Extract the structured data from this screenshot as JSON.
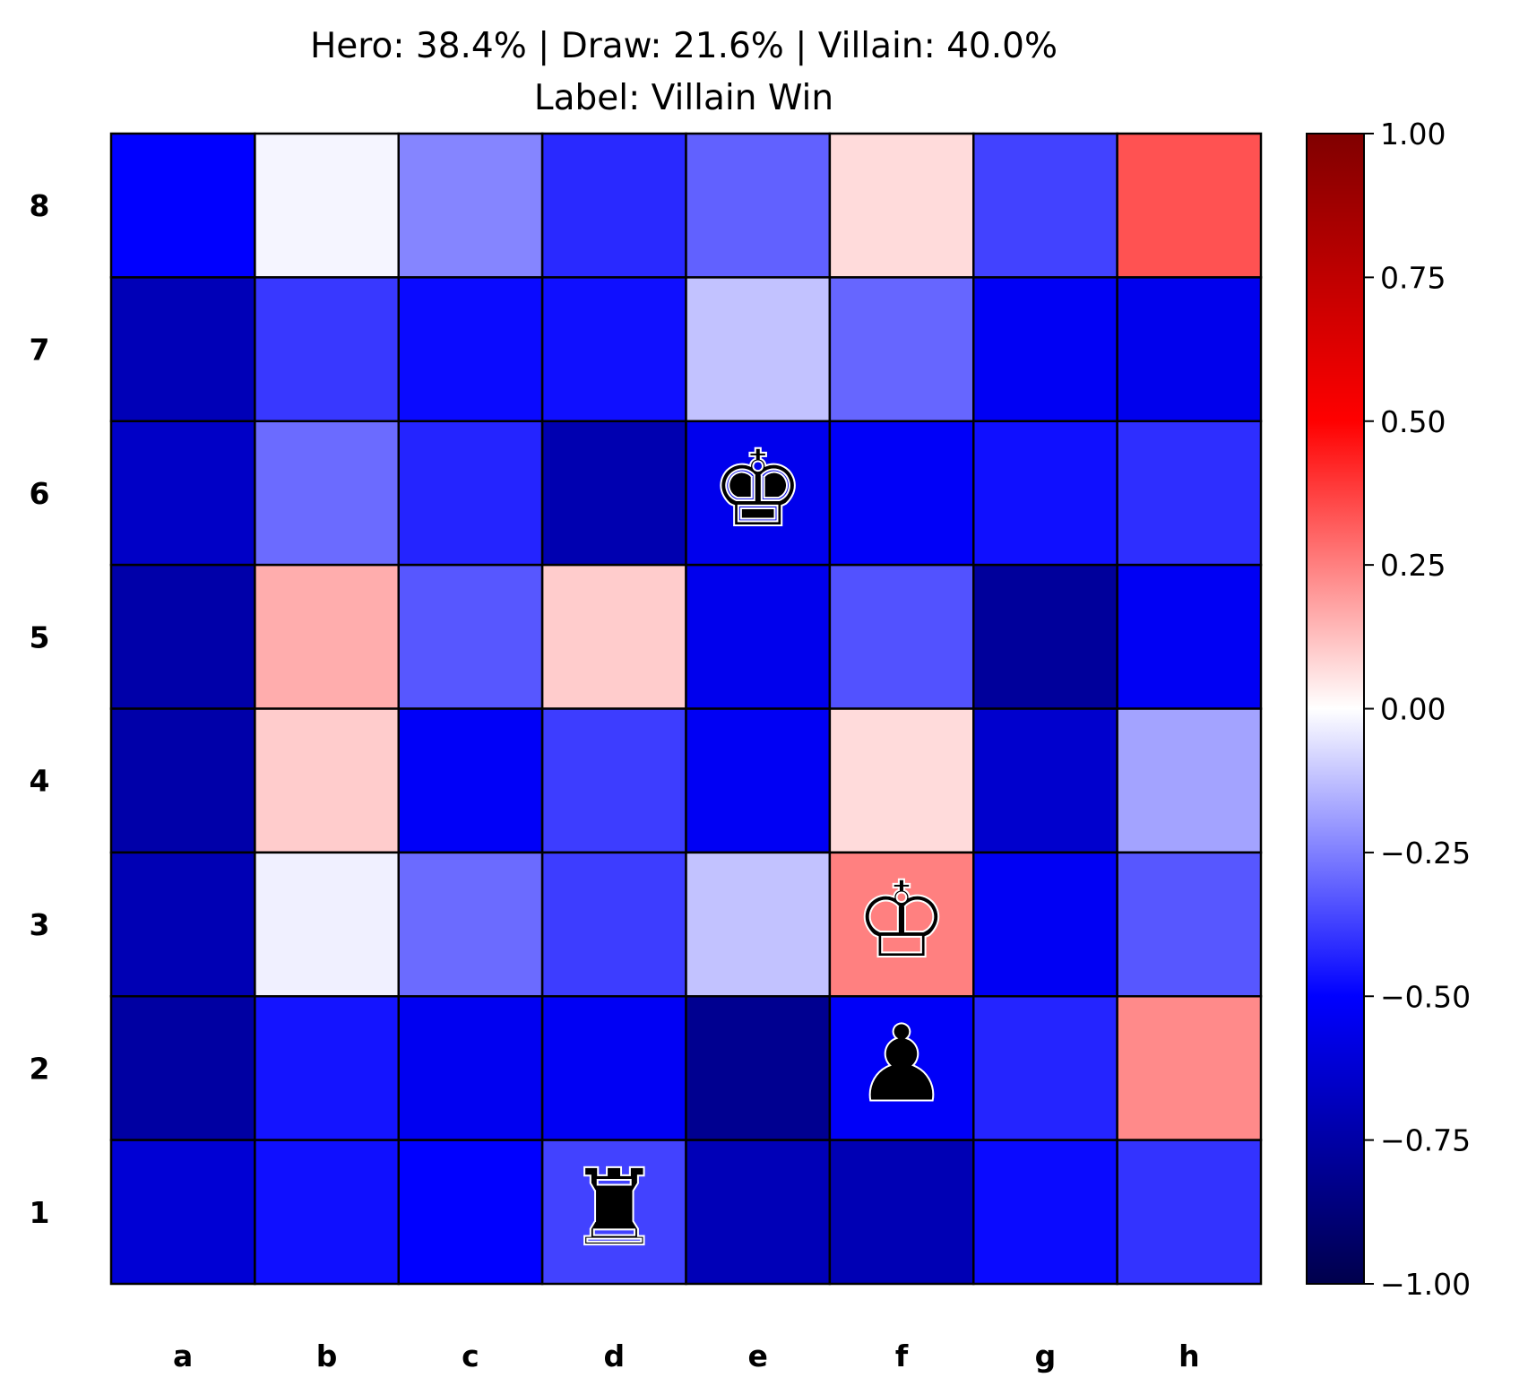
{
  "chart_data": {
    "type": "heatmap",
    "title_line1": "Hero: 38.4% | Draw: 21.6% | Villain: 40.0%",
    "title_line2": "Label: Villain Win",
    "files": [
      "a",
      "b",
      "c",
      "d",
      "e",
      "f",
      "g",
      "h"
    ],
    "ranks": [
      "8",
      "7",
      "6",
      "5",
      "4",
      "3",
      "2",
      "1"
    ],
    "values": [
      [
        -0.5,
        -0.02,
        -0.24,
        -0.42,
        -0.31,
        0.07,
        -0.37,
        0.34
      ],
      [
        -0.7,
        -0.39,
        -0.48,
        -0.47,
        -0.12,
        -0.3,
        -0.53,
        -0.55
      ],
      [
        -0.66,
        -0.29,
        -0.43,
        -0.72,
        -0.55,
        -0.52,
        -0.47,
        -0.41
      ],
      [
        -0.74,
        0.16,
        -0.33,
        0.1,
        -0.55,
        -0.34,
        -0.78,
        -0.53
      ],
      [
        -0.74,
        0.1,
        -0.52,
        -0.38,
        -0.53,
        0.07,
        -0.64,
        -0.18
      ],
      [
        -0.71,
        -0.03,
        -0.29,
        -0.38,
        -0.12,
        0.25,
        -0.53,
        -0.33
      ],
      [
        -0.76,
        -0.46,
        -0.54,
        -0.53,
        -0.81,
        -0.52,
        -0.43,
        0.23
      ],
      [
        -0.62,
        -0.47,
        -0.5,
        -0.37,
        -0.7,
        -0.71,
        -0.48,
        -0.4
      ]
    ],
    "pieces": [
      {
        "square": "e6",
        "glyph": "♚",
        "name": "black-king"
      },
      {
        "square": "f3",
        "glyph": "♔",
        "name": "white-king"
      },
      {
        "square": "f2",
        "glyph": "♟",
        "name": "black-pawn"
      },
      {
        "square": "d1",
        "glyph": "♜",
        "name": "black-rook"
      }
    ],
    "colorbar": {
      "colormap": "seismic",
      "range": [
        -1.0,
        1.0
      ],
      "ticks": [
        "1.00",
        "0.75",
        "0.50",
        "0.25",
        "0.00",
        "−0.25",
        "−0.50",
        "−0.75",
        "−1.00"
      ],
      "tick_values": [
        1.0,
        0.75,
        0.5,
        0.25,
        0.0,
        -0.25,
        -0.5,
        -0.75,
        -1.0
      ]
    }
  }
}
